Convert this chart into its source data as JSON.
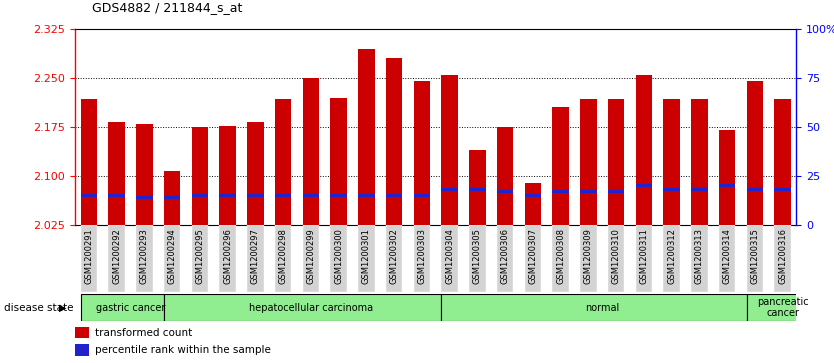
{
  "title": "GDS4882 / 211844_s_at",
  "samples": [
    "GSM1200291",
    "GSM1200292",
    "GSM1200293",
    "GSM1200294",
    "GSM1200295",
    "GSM1200296",
    "GSM1200297",
    "GSM1200298",
    "GSM1200299",
    "GSM1200300",
    "GSM1200301",
    "GSM1200302",
    "GSM1200303",
    "GSM1200304",
    "GSM1200305",
    "GSM1200306",
    "GSM1200307",
    "GSM1200308",
    "GSM1200309",
    "GSM1200310",
    "GSM1200311",
    "GSM1200312",
    "GSM1200313",
    "GSM1200314",
    "GSM1200315",
    "GSM1200316"
  ],
  "transformed_counts": [
    2.218,
    2.182,
    2.18,
    2.108,
    2.175,
    2.177,
    2.182,
    2.218,
    2.25,
    2.22,
    2.295,
    2.28,
    2.245,
    2.255,
    2.14,
    2.175,
    2.09,
    2.205,
    2.218,
    2.218,
    2.255,
    2.218,
    2.218,
    2.17,
    2.245,
    2.218
  ],
  "percentile_ranks": [
    15,
    15,
    14,
    14,
    15,
    15,
    15,
    15,
    15,
    15,
    15,
    15,
    15,
    18,
    18,
    17,
    15,
    17,
    17,
    17,
    20,
    18,
    18,
    20,
    18,
    18
  ],
  "ylim_left": [
    2.025,
    2.325
  ],
  "ylim_right": [
    0,
    100
  ],
  "yticks_left": [
    2.025,
    2.1,
    2.175,
    2.25,
    2.325
  ],
  "yticks_right": [
    0,
    25,
    50,
    75,
    100
  ],
  "bar_color": "#cc0000",
  "blue_color": "#2222cc",
  "disease_groups": [
    {
      "label": "gastric cancer",
      "start": 0,
      "end": 3
    },
    {
      "label": "hepatocellular carcinoma",
      "start": 3,
      "end": 13
    },
    {
      "label": "normal",
      "start": 13,
      "end": 24
    },
    {
      "label": "pancreatic\ncancer",
      "start": 24,
      "end": 26
    }
  ],
  "disease_state_label": "disease state",
  "legend_transformed": "transformed count",
  "legend_percentile": "percentile rank within the sample",
  "bg_color": "#ffffff",
  "plot_bg": "#ffffff",
  "group_bg": "#90EE90",
  "xlabel_bg": "#d3d3d3"
}
